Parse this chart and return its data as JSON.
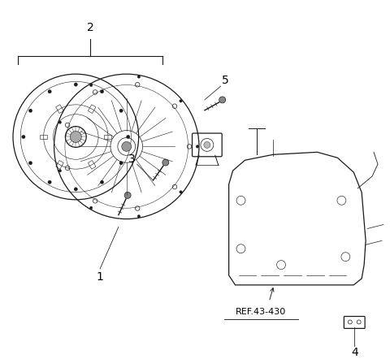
{
  "background_color": "#ffffff",
  "line_color": "#1a1a1a",
  "label_color": "#000000",
  "ref_text": "REF.43-430",
  "figsize": [
    4.8,
    4.42
  ],
  "dpi": 100
}
